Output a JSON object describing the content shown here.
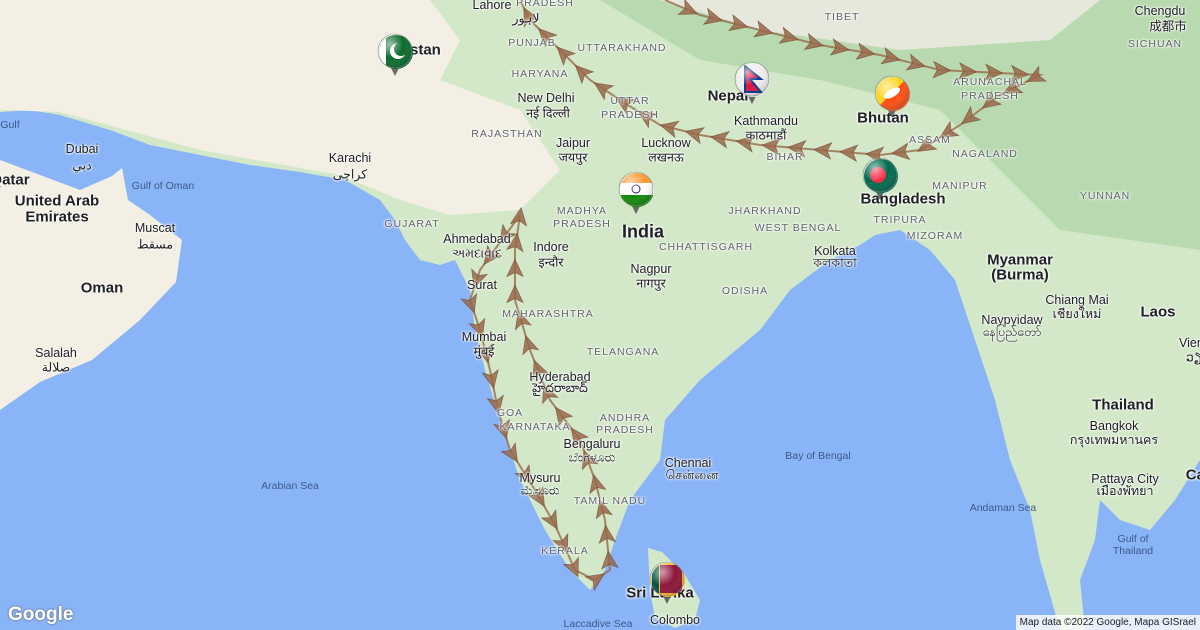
{
  "map": {
    "colors": {
      "water": "#8ab4f8",
      "land": "#d3e8c9",
      "desert": "#f3efe4",
      "route": "#9a6a4c"
    },
    "labels": {
      "pakistan": "Pakistan",
      "india": "India",
      "nepal": "Nepal",
      "bhutan": "Bhutan",
      "bangladesh": "Bangladesh",
      "myanmar": "Myanmar",
      "myanmar2": "(Burma)",
      "oman": "Oman",
      "uae1": "United Arab",
      "uae2": "Emirates",
      "qatar": "Qatar",
      "thailand": "Thailand",
      "laos": "Laos",
      "srilanka": "Sri Lanka",
      "lahore": "Lahore",
      "lahore_l": "لاہور",
      "karachi": "Karachi",
      "karachi_l": "کراچی",
      "dubai": "Dubai",
      "dubai_l": "دبي",
      "muscat": "Muscat",
      "muscat_l": "مسقط",
      "salalah": "Salalah",
      "salalah_l": "صلالة",
      "newdelhi": "New Delhi",
      "newdelhi_l": "नई दिल्ली",
      "jaipur": "Jaipur",
      "jaipur_l": "जयपुर",
      "lucknow": "Lucknow",
      "lucknow_l": "लखनऊ",
      "kathmandu": "Kathmandu",
      "kathmandu_l": "काठमाडौं",
      "ahmedabad": "Ahmedabad",
      "ahmedabad_l": "અમદાવાદ",
      "indore": "Indore",
      "indore_l": "इन्दौर",
      "nagpur": "Nagpur",
      "nagpur_l": "नागपुर",
      "kolkata": "Kolkata",
      "kolkata_l": "কলকাতা",
      "surat": "Surat",
      "mumbai": "Mumbai",
      "mumbai_l": "मुंबई",
      "hyderabad": "Hyderabad",
      "hyderabad_l": "హైదరాబాద్",
      "bengaluru": "Bengaluru",
      "bengaluru_l": "ಬೆಂಗಳೂರು",
      "chennai": "Chennai",
      "chennai_l": "சென்னை",
      "mysuru": "Mysuru",
      "mysuru_l": "ಮೈಸೂರು",
      "colombo": "Colombo",
      "chengdu": "Chengdu",
      "chengdu_l": "成都市",
      "chiangmai": "Chiang Mai",
      "chiangmai_l": "เชียงใหม่",
      "naypyidaw": "Naypyidaw",
      "naypyidaw_l": "နေပြည်တော်",
      "bangkok": "Bangkok",
      "bangkok_l": "กรุงเทพมหานคร",
      "pattaya": "Pattaya City",
      "pattaya_l": "เมืองพัทยา",
      "vientiane": "Vientiane",
      "vientiane_l": "ວຽງຈັນ",
      "cambodia": "Cambodia",
      "himachal": "PRADESH",
      "punjab": "PUNJAB",
      "uttarakhand": "UTTARAKHAND",
      "haryana": "HARYANA",
      "rajasthan": "RAJASTHAN",
      "up1": "UTTAR",
      "up2": "PRADESH",
      "tibet": "TIBET",
      "sichuan": "SICHUAN",
      "arunachal1": "ARUNACHAL",
      "arunachal2": "PRADESH",
      "assam": "ASSAM",
      "nagaland": "NAGALAND",
      "manipur": "MANIPUR",
      "tripura": "TRIPURA",
      "mizoram": "MIZORAM",
      "yunnan": "YUNNAN",
      "bihar": "BIHAR",
      "jharkhand": "JHARKHAND",
      "westbengal": "WEST BENGAL",
      "mp1": "MADHYA",
      "mp2": "PRADESH",
      "chhattisgarh": "CHHATTISGARH",
      "gujarat": "GUJARAT",
      "odisha": "ODISHA",
      "maharashtra": "MAHARASHTRA",
      "telangana": "TELANGANA",
      "ap1": "ANDHRA",
      "ap2": "PRADESH",
      "karnataka": "KARNATAKA",
      "goa": "GOA",
      "tamilnadu": "TAMIL NADU",
      "kerala": "KERALA",
      "gulf": "Gulf",
      "gulfoman": "Gulf of Oman",
      "arabiansea": "Arabian Sea",
      "bayofbengal": "Bay of Bengal",
      "andamansea": "Andaman Sea",
      "gulfthailand1": "Gulf of",
      "gulfthailand2": "Thailand",
      "laccadive": "Laccadive Sea"
    },
    "markers": [
      {
        "country": "Pakistan",
        "icon": "pakistan-flag-icon"
      },
      {
        "country": "Nepal",
        "icon": "nepal-flag-icon"
      },
      {
        "country": "Bhutan",
        "icon": "bhutan-flag-icon"
      },
      {
        "country": "India",
        "icon": "india-flag-icon"
      },
      {
        "country": "Bangladesh",
        "icon": "bangladesh-flag-icon"
      },
      {
        "country": "Sri Lanka",
        "icon": "sri-lanka-flag-icon"
      }
    ]
  },
  "logo": "Google",
  "attribution": "Map data ©2022 Google, Mapa GISrael"
}
